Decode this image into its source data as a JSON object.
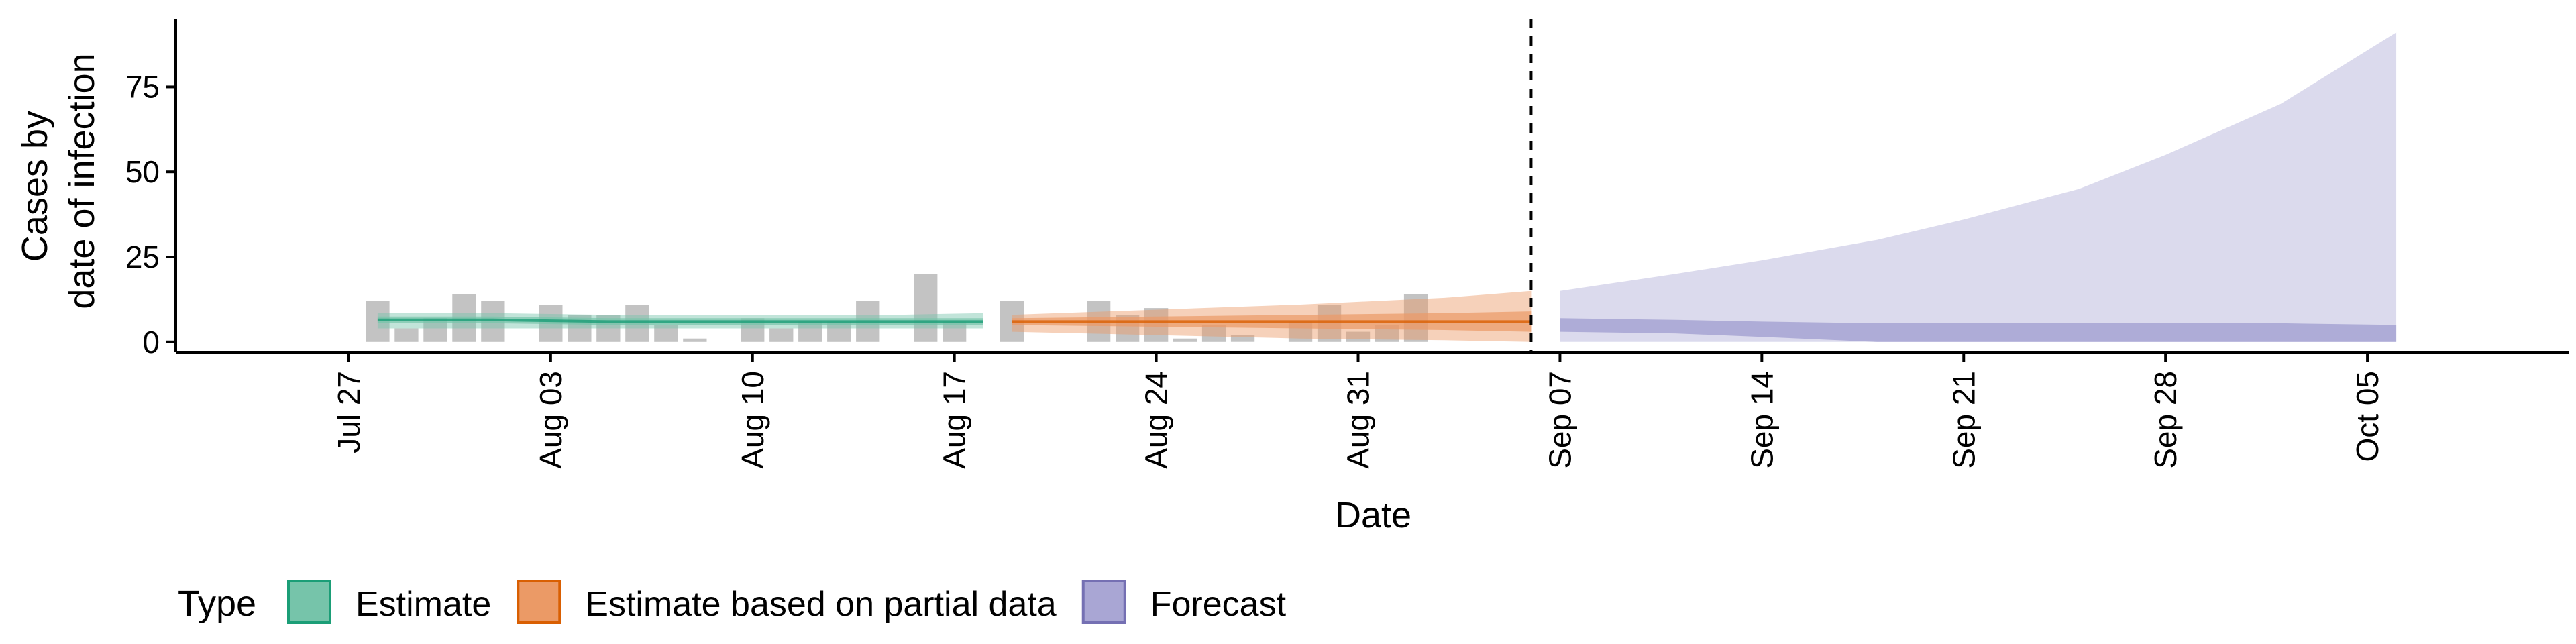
{
  "chart_data": {
    "type": "area",
    "title": "",
    "xlabel": "Date",
    "ylabel": [
      "Cases by",
      "date of infection"
    ],
    "x_range": [
      "2020-07-21",
      "2020-10-12"
    ],
    "ylim": [
      -3,
      95
    ],
    "y_ticks": [
      0,
      25,
      50,
      75
    ],
    "x_ticks": [
      {
        "date": "2020-07-27",
        "label": "Jul 27"
      },
      {
        "date": "2020-08-03",
        "label": "Aug 03"
      },
      {
        "date": "2020-08-10",
        "label": "Aug 10"
      },
      {
        "date": "2020-08-17",
        "label": "Aug 17"
      },
      {
        "date": "2020-08-24",
        "label": "Aug 24"
      },
      {
        "date": "2020-08-31",
        "label": "Aug 31"
      },
      {
        "date": "2020-09-07",
        "label": "Sep 07"
      },
      {
        "date": "2020-09-14",
        "label": "Sep 14"
      },
      {
        "date": "2020-09-21",
        "label": "Sep 21"
      },
      {
        "date": "2020-09-28",
        "label": "Sep 28"
      },
      {
        "date": "2020-10-05",
        "label": "Oct 05"
      }
    ],
    "grid": false,
    "legend_position": "bottom-left",
    "legend_title": "Type",
    "legend": [
      {
        "name": "Estimate",
        "fill": "#76c4aa",
        "stroke": "#1b9e77"
      },
      {
        "name": "Estimate based on partial data",
        "fill": "#eb9a66",
        "stroke": "#d95f02"
      },
      {
        "name": "Forecast",
        "fill": "#a9a6d4",
        "stroke": "#7570b3"
      }
    ],
    "forecast_start_line_date": "2020-09-06",
    "observed_cases": [
      {
        "date": "2020-07-28",
        "value": 12
      },
      {
        "date": "2020-07-29",
        "value": 4
      },
      {
        "date": "2020-07-30",
        "value": 7
      },
      {
        "date": "2020-07-31",
        "value": 14
      },
      {
        "date": "2020-08-01",
        "value": 12
      },
      {
        "date": "2020-08-03",
        "value": 11
      },
      {
        "date": "2020-08-04",
        "value": 8
      },
      {
        "date": "2020-08-05",
        "value": 8
      },
      {
        "date": "2020-08-06",
        "value": 11
      },
      {
        "date": "2020-08-07",
        "value": 5
      },
      {
        "date": "2020-08-08",
        "value": 1
      },
      {
        "date": "2020-08-10",
        "value": 7
      },
      {
        "date": "2020-08-11",
        "value": 4
      },
      {
        "date": "2020-08-12",
        "value": 6
      },
      {
        "date": "2020-08-13",
        "value": 6
      },
      {
        "date": "2020-08-14",
        "value": 12
      },
      {
        "date": "2020-08-16",
        "value": 20
      },
      {
        "date": "2020-08-17",
        "value": 6
      },
      {
        "date": "2020-08-19",
        "value": 12
      },
      {
        "date": "2020-08-22",
        "value": 12
      },
      {
        "date": "2020-08-23",
        "value": 8
      },
      {
        "date": "2020-08-24",
        "value": 10
      },
      {
        "date": "2020-08-25",
        "value": 1
      },
      {
        "date": "2020-08-26",
        "value": 5
      },
      {
        "date": "2020-08-27",
        "value": 2
      },
      {
        "date": "2020-08-29",
        "value": 6
      },
      {
        "date": "2020-08-30",
        "value": 11
      },
      {
        "date": "2020-08-31",
        "value": 3
      },
      {
        "date": "2020-09-01",
        "value": 5
      },
      {
        "date": "2020-09-02",
        "value": 14
      }
    ],
    "series": [
      {
        "name": "Estimate",
        "dates": [
          "2020-07-28",
          "2020-08-01",
          "2020-08-05",
          "2020-08-10",
          "2020-08-15",
          "2020-08-18"
        ],
        "median": [
          6.5,
          6.5,
          6.0,
          6.0,
          6.0,
          6.0
        ],
        "inner_band": [
          [
            5.5,
            7.5
          ],
          [
            5.5,
            7.5
          ],
          [
            5.0,
            7.0
          ],
          [
            5.0,
            7.0
          ],
          [
            5.0,
            7.0
          ],
          [
            5.0,
            7.0
          ]
        ],
        "outer_band": [
          [
            4.0,
            8.5
          ],
          [
            4.0,
            8.5
          ],
          [
            4.0,
            8.0
          ],
          [
            4.0,
            8.0
          ],
          [
            4.0,
            8.0
          ],
          [
            4.0,
            8.5
          ]
        ]
      },
      {
        "name": "Estimate based on partial data",
        "dates": [
          "2020-08-19",
          "2020-08-24",
          "2020-08-29",
          "2020-09-03",
          "2020-09-06"
        ],
        "median": [
          6.0,
          6.0,
          6.0,
          6.0,
          6.0
        ],
        "inner_band": [
          [
            5.0,
            7.0
          ],
          [
            4.5,
            7.5
          ],
          [
            4.0,
            8.0
          ],
          [
            3.5,
            8.5
          ],
          [
            3.0,
            9.0
          ]
        ],
        "outer_band": [
          [
            3.0,
            8.0
          ],
          [
            2.0,
            9.5
          ],
          [
            1.0,
            11.0
          ],
          [
            0.5,
            13.0
          ],
          [
            0.0,
            15.0
          ]
        ]
      },
      {
        "name": "Forecast",
        "dates": [
          "2020-09-07",
          "2020-09-11",
          "2020-09-14",
          "2020-09-18",
          "2020-09-21",
          "2020-09-25",
          "2020-09-28",
          "2020-10-02",
          "2020-10-06"
        ],
        "inner_band": [
          [
            3.0,
            7.0
          ],
          [
            2.5,
            6.5
          ],
          [
            1.5,
            6.0
          ],
          [
            0.0,
            5.5
          ],
          [
            0.0,
            5.5
          ],
          [
            0.0,
            5.5
          ],
          [
            0.0,
            5.5
          ],
          [
            0.0,
            5.5
          ],
          [
            0.0,
            5.0
          ]
        ],
        "outer_band": [
          [
            0.0,
            15.0
          ],
          [
            0.0,
            20.0
          ],
          [
            0.0,
            24.0
          ],
          [
            0.0,
            30.0
          ],
          [
            0.0,
            36.0
          ],
          [
            0.0,
            45.0
          ],
          [
            0.0,
            55.0
          ],
          [
            0.0,
            70.0
          ],
          [
            0.0,
            91.0
          ]
        ]
      }
    ]
  }
}
